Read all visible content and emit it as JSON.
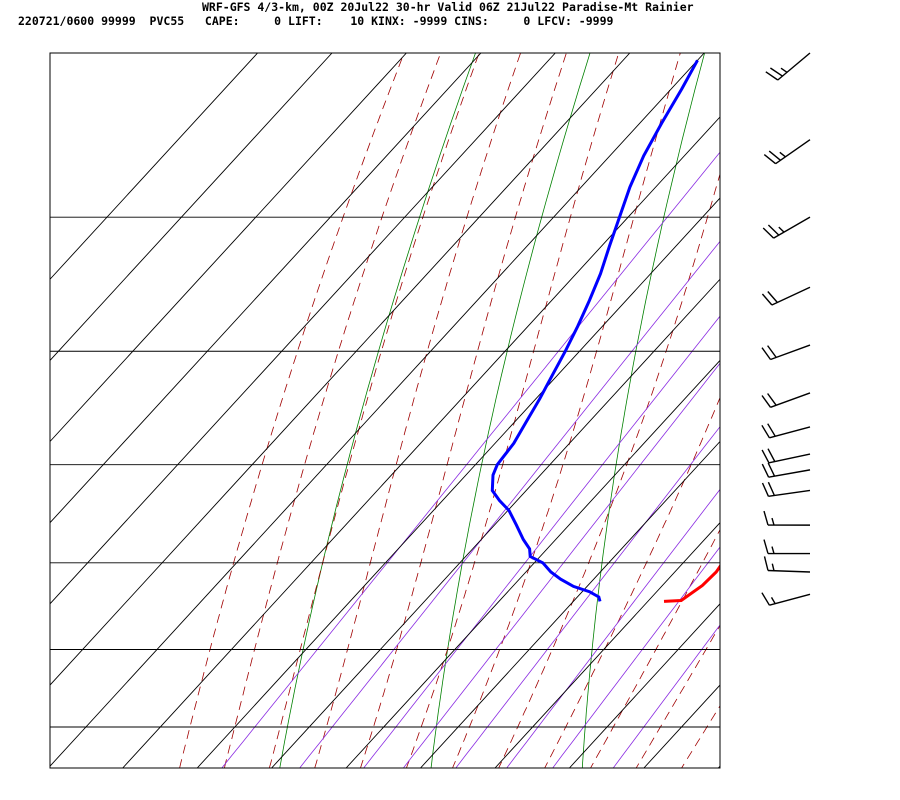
{
  "header": {
    "line1": "WRF-GFS 4/3-km, 00Z 20Jul22 30-hr Valid 06Z 21Jul22 Paradise-Mt Rainier",
    "line2": "220721/0600 99999  PVC55   CAPE:     0 LIFT:    10 KINX: -9999 CINS:     0 LFCV: -9999"
  },
  "colors": {
    "temperature": "#ff0000",
    "dewpoint": "#0000ff",
    "isotherm": "#000000",
    "dry_adiabat": "#008000",
    "moist_adiabat": "#a00000",
    "mixing_ratio": "#8a2be2",
    "wind_barb": "#000000"
  },
  "chart_data": {
    "type": "line",
    "subtype": "skew-t log-p sounding",
    "x_ticks": [
      "-50",
      "-40",
      "-30",
      "-20",
      "-10",
      "0",
      "10",
      "20",
      "30",
      "40"
    ],
    "xlim": [
      -50,
      40
    ],
    "y_ticks": [
      "400",
      "500",
      "600",
      "700",
      "800",
      "900",
      "1000"
    ],
    "ylim": [
      1050,
      400
    ],
    "yscale": "log",
    "grid": true,
    "series": [
      {
        "role": "temperature",
        "points": [
          [
            843,
            12.0
          ],
          [
            842,
            14.2
          ],
          [
            835,
            14.6
          ],
          [
            825,
            15.2
          ],
          [
            810,
            15.4
          ],
          [
            795,
            15.0
          ],
          [
            780,
            14.0
          ],
          [
            765,
            13.0
          ],
          [
            750,
            12.5
          ],
          [
            735,
            11.8
          ],
          [
            720,
            11.3
          ],
          [
            705,
            10.5
          ],
          [
            690,
            9.5
          ],
          [
            675,
            8.3
          ],
          [
            660,
            7.0
          ],
          [
            645,
            5.7
          ],
          [
            630,
            4.4
          ],
          [
            615,
            3.2
          ],
          [
            600,
            1.9
          ],
          [
            580,
            -0.1
          ],
          [
            560,
            -2.1
          ],
          [
            540,
            -4.2
          ],
          [
            520,
            -6.5
          ],
          [
            500,
            -9.0
          ],
          [
            480,
            -11.6
          ],
          [
            460,
            -14.3
          ],
          [
            440,
            -17.2
          ],
          [
            420,
            -20.3
          ],
          [
            404,
            -22.9
          ]
        ]
      },
      {
        "role": "dewpoint",
        "points": [
          [
            843,
            3.4
          ],
          [
            838,
            2.7
          ],
          [
            832,
            0.8
          ],
          [
            826,
            -2.0
          ],
          [
            818,
            -4.6
          ],
          [
            810,
            -6.8
          ],
          [
            800,
            -9.0
          ],
          [
            793,
            -11.5
          ],
          [
            785,
            -12.5
          ],
          [
            775,
            -14.5
          ],
          [
            760,
            -17.2
          ],
          [
            745,
            -20.0
          ],
          [
            735,
            -22.5
          ],
          [
            725,
            -24.7
          ],
          [
            710,
            -26.5
          ],
          [
            700,
            -27.2
          ],
          [
            680,
            -27.6
          ],
          [
            660,
            -28.6
          ],
          [
            640,
            -29.6
          ],
          [
            620,
            -30.8
          ],
          [
            600,
            -32.0
          ],
          [
            580,
            -33.4
          ],
          [
            560,
            -35.0
          ],
          [
            540,
            -36.8
          ],
          [
            520,
            -39.0
          ],
          [
            500,
            -41.2
          ],
          [
            480,
            -43.5
          ],
          [
            460,
            -45.5
          ],
          [
            440,
            -47.1
          ],
          [
            420,
            -48.6
          ],
          [
            404,
            -50.0
          ]
        ]
      }
    ],
    "wind_barbs": [
      {
        "p": 400,
        "dir": 230,
        "speed": 25
      },
      {
        "p": 450,
        "dir": 235,
        "speed": 25
      },
      {
        "p": 500,
        "dir": 240,
        "speed": 25
      },
      {
        "p": 550,
        "dir": 245,
        "speed": 20
      },
      {
        "p": 595,
        "dir": 250,
        "speed": 20
      },
      {
        "p": 635,
        "dir": 250,
        "speed": 20
      },
      {
        "p": 665,
        "dir": 255,
        "speed": 20
      },
      {
        "p": 690,
        "dir": 258,
        "speed": 20
      },
      {
        "p": 705,
        "dir": 260,
        "speed": 20
      },
      {
        "p": 725,
        "dir": 262,
        "speed": 20
      },
      {
        "p": 760,
        "dir": 270,
        "speed": 15
      },
      {
        "p": 790,
        "dir": 270,
        "speed": 15
      },
      {
        "p": 810,
        "dir": 272,
        "speed": 15
      },
      {
        "p": 835,
        "dir": 255,
        "speed": 15
      }
    ]
  }
}
